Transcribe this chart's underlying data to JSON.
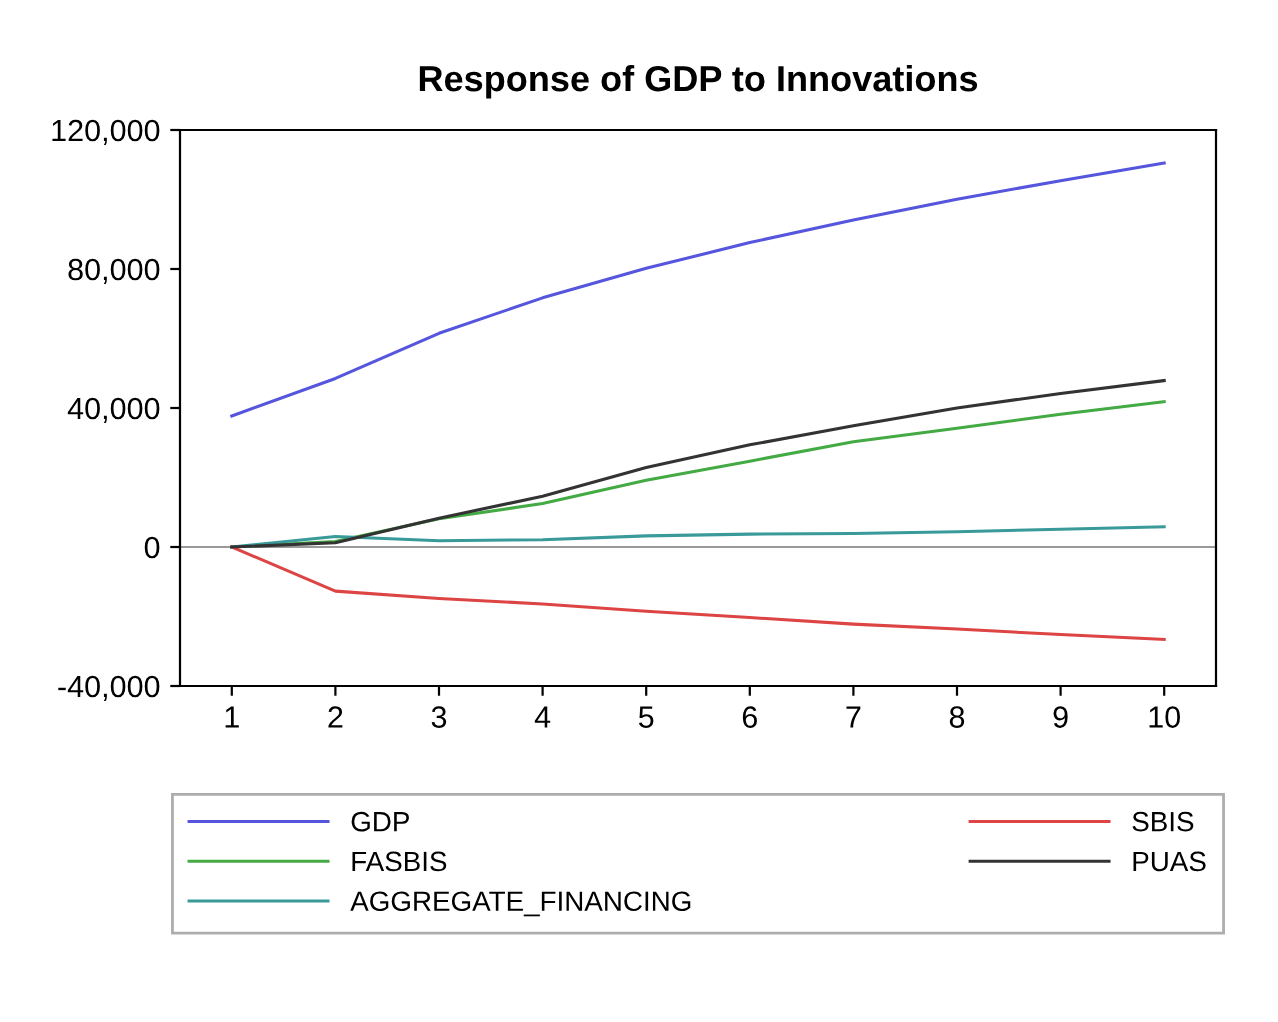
{
  "chart_data": {
    "type": "line",
    "title": "Response of GDP to Innovations",
    "x": [
      1,
      2,
      3,
      4,
      5,
      6,
      7,
      8,
      9,
      10
    ],
    "series": [
      {
        "name": "GDP",
        "color": "#5555dd",
        "values": [
          37700,
          48500,
          61500,
          71700,
          80200,
          87600,
          94100,
          100100,
          105400,
          110500
        ]
      },
      {
        "name": "FASBIS",
        "color": "#44aa44",
        "values": [
          0,
          1600,
          8100,
          12500,
          19200,
          24700,
          30300,
          34200,
          38200,
          41800
        ]
      },
      {
        "name": "AGGREGATE_FINANCING",
        "color": "#3a9a9a",
        "values": [
          0,
          3000,
          1800,
          2100,
          3200,
          3700,
          3900,
          4400,
          5100,
          5800
        ]
      },
      {
        "name": "SBIS",
        "color": "#dd4444",
        "values": [
          0,
          -12700,
          -14800,
          -16400,
          -18500,
          -20300,
          -22200,
          -23600,
          -25200,
          -26600
        ]
      },
      {
        "name": "PUAS",
        "color": "#333333",
        "values": [
          0,
          1200,
          8300,
          14600,
          22900,
          29400,
          34900,
          40000,
          44200,
          47900
        ]
      }
    ],
    "xlim": [
      0.5,
      10.5
    ],
    "xticks": [
      1,
      2,
      3,
      4,
      5,
      6,
      7,
      8,
      9,
      10
    ],
    "ylim": [
      -40000,
      120000
    ],
    "yticks": [
      {
        "value": -40000,
        "label": "-40,000"
      },
      0,
      {
        "value": 40000,
        "label": "40,000"
      },
      {
        "value": 80000,
        "label": "80,000"
      },
      {
        "value": 120000,
        "label": "120,000"
      }
    ],
    "ref_lines": [
      {
        "axis": "y",
        "value": 0,
        "color": "#999999"
      }
    ],
    "grid": false,
    "legend": "bottom",
    "marker": "none",
    "line_style": "solid"
  }
}
